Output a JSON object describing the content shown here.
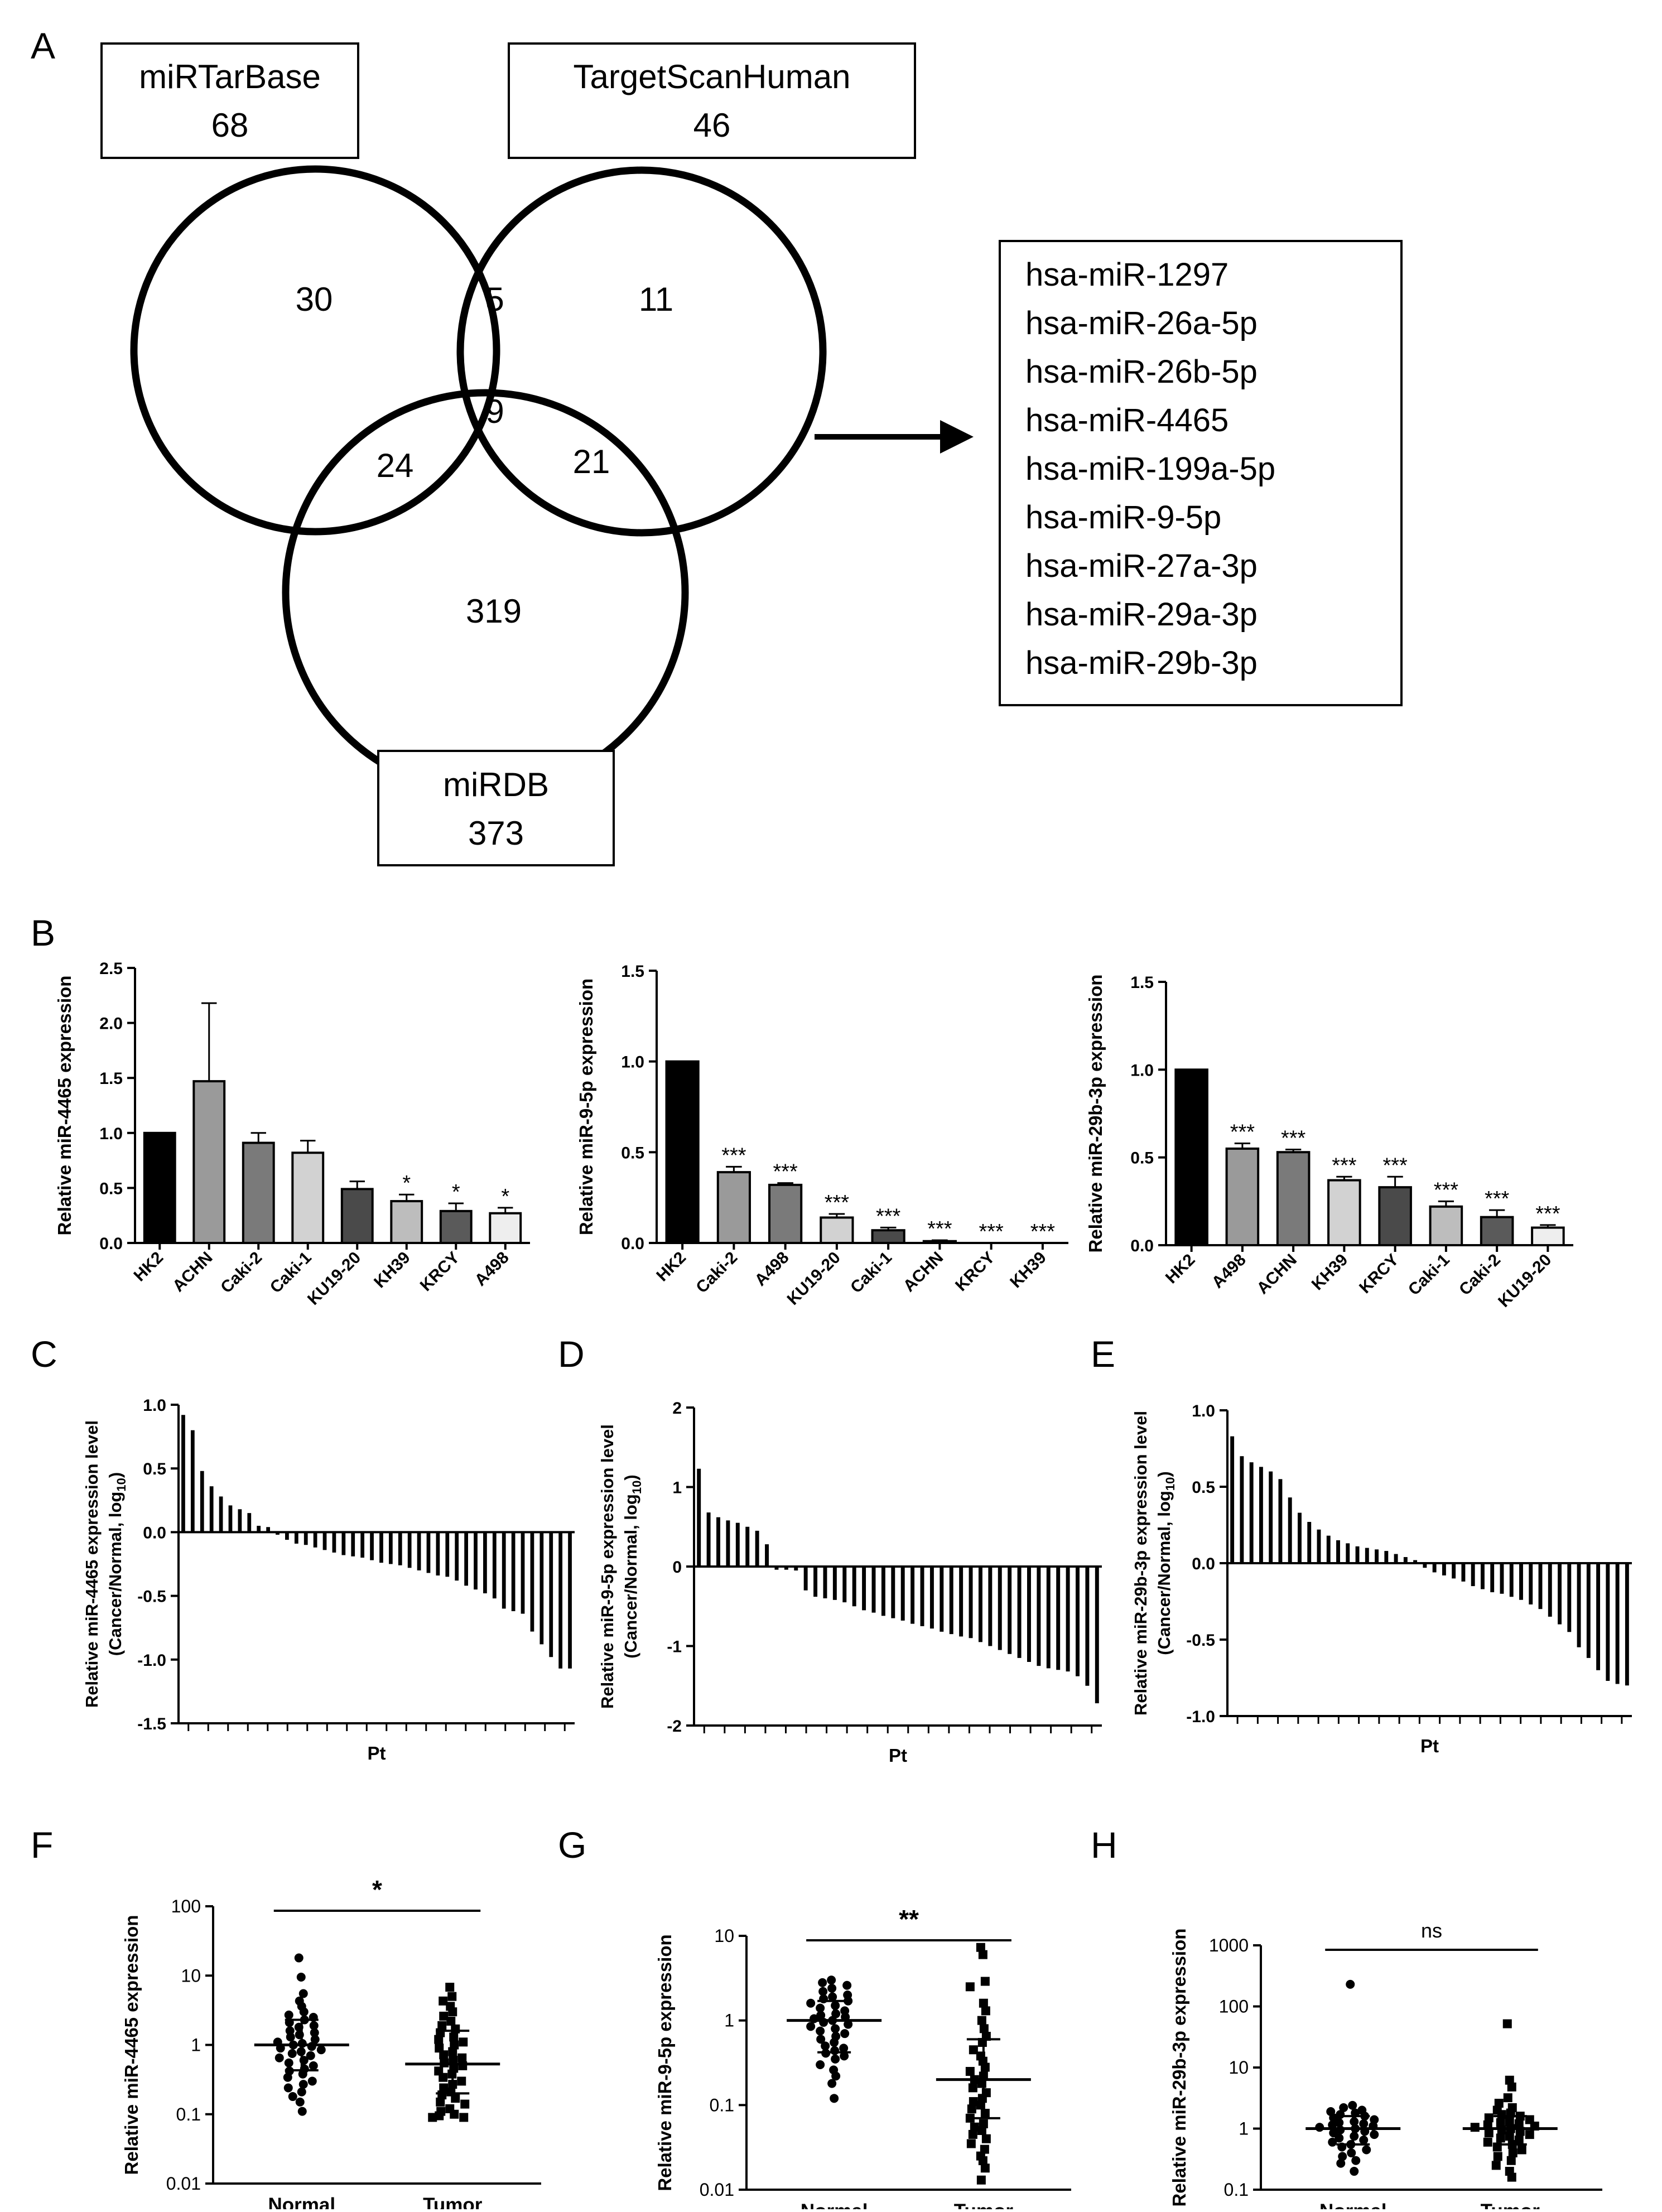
{
  "panel_letters": {
    "A": "A",
    "B": "B",
    "C": "C",
    "D": "D",
    "E": "E",
    "F": "F",
    "G": "G",
    "H": "H"
  },
  "venn": {
    "db1": {
      "name": "miRTarBase",
      "count": "68"
    },
    "db2": {
      "name": "TargetScanHuman",
      "count": "46"
    },
    "db3": {
      "name": "miRDB",
      "count": "373"
    },
    "regions": {
      "only1": "30",
      "only2": "11",
      "only3": "319",
      "r12": "5",
      "r13": "24",
      "r23": "21",
      "r123": "9"
    },
    "common_mirnas": [
      "hsa-miR-1297",
      "hsa-miR-26a-5p",
      "hsa-miR-26b-5p",
      "hsa-miR-4465",
      "hsa-miR-199a-5p",
      "hsa-miR-9-5p",
      "hsa-miR-27a-3p",
      "hsa-miR-29a-3p",
      "hsa-miR-29b-3p"
    ]
  },
  "chart_data": [
    {
      "id": "B1",
      "type": "bar",
      "ylabel": "Relative miR-4465 expression",
      "ylim": [
        0,
        2.5
      ],
      "yticks": [
        0,
        0.5,
        1.0,
        1.5,
        2.0,
        2.5
      ],
      "ytick_labels": [
        "0.0",
        "0.5",
        "1.0",
        "1.5",
        "2.0",
        "2.5"
      ],
      "categories": [
        "HK2",
        "ACHN",
        "Caki-2",
        "Caki-1",
        "KU19-20",
        "KH39",
        "KRCY",
        "A498"
      ],
      "values": [
        1.0,
        1.47,
        0.91,
        0.82,
        0.49,
        0.38,
        0.29,
        0.27
      ],
      "errors": [
        0,
        0.71,
        0.09,
        0.11,
        0.07,
        0.06,
        0.07,
        0.05
      ],
      "significance": [
        "",
        "",
        "",
        "",
        "",
        "*",
        "*",
        "*"
      ],
      "colors": [
        "#000000",
        "#9a9a9a",
        "#7a7a7a",
        "#d2d2d2",
        "#4a4a4a",
        "#bdbdbd",
        "#5a5a5a",
        "#eeeeee"
      ]
    },
    {
      "id": "B2",
      "type": "bar",
      "ylabel": "Relative miR-9-5p expression",
      "ylim": [
        0,
        1.5
      ],
      "yticks": [
        0,
        0.5,
        1.0,
        1.5
      ],
      "ytick_labels": [
        "0.0",
        "0.5",
        "1.0",
        "1.5"
      ],
      "categories": [
        "HK2",
        "Caki-2",
        "A498",
        "KU19-20",
        "Caki-1",
        "ACHN",
        "KRCY",
        "KH39"
      ],
      "values": [
        1.0,
        0.39,
        0.32,
        0.14,
        0.07,
        0.01,
        0.0,
        0.0
      ],
      "errors": [
        0,
        0.03,
        0.01,
        0.02,
        0.015,
        0.005,
        0,
        0
      ],
      "significance": [
        "",
        "***",
        "***",
        "***",
        "***",
        "***",
        "***",
        "***"
      ],
      "colors": [
        "#000000",
        "#9a9a9a",
        "#7a7a7a",
        "#d2d2d2",
        "#4a4a4a",
        "#bdbdbd",
        "#5a5a5a",
        "#eeeeee"
      ]
    },
    {
      "id": "B3",
      "type": "bar",
      "ylabel": "Relative miR-29b-3p expression",
      "ylim": [
        0,
        1.5
      ],
      "yticks": [
        0,
        0.5,
        1.0,
        1.5
      ],
      "ytick_labels": [
        "0.0",
        "0.5",
        "1.0",
        "1.5"
      ],
      "categories": [
        "HK2",
        "A498",
        "ACHN",
        "KH39",
        "KRCY",
        "Caki-1",
        "Caki-2",
        "KU19-20"
      ],
      "values": [
        1.0,
        0.55,
        0.53,
        0.37,
        0.33,
        0.22,
        0.16,
        0.1
      ],
      "errors": [
        0,
        0.03,
        0.015,
        0.02,
        0.06,
        0.03,
        0.04,
        0.015
      ],
      "significance": [
        "",
        "***",
        "***",
        "***",
        "***",
        "***",
        "***",
        "***"
      ],
      "colors": [
        "#000000",
        "#9a9a9a",
        "#7a7a7a",
        "#d2d2d2",
        "#4a4a4a",
        "#bdbdbd",
        "#5a5a5a",
        "#eeeeee"
      ]
    },
    {
      "id": "C",
      "type": "bar",
      "ylabel_line1": "Relative miR-4465 expression level",
      "ylabel_line2": "(Cancer/Normal, log",
      "ylabel_sub": "10",
      "ylabel_close": ")",
      "xlabel": "Pt",
      "ylim": [
        -1.5,
        1.0
      ],
      "yticks": [
        -1.5,
        -1.0,
        -0.5,
        0.0,
        0.5,
        1.0
      ],
      "ytick_labels": [
        "-1.5",
        "-1.0",
        "-0.5",
        "0.0",
        "0.5",
        "1.0"
      ],
      "values": [
        0.92,
        0.8,
        0.48,
        0.36,
        0.28,
        0.21,
        0.18,
        0.15,
        0.05,
        0.04,
        -0.02,
        -0.06,
        -0.09,
        -0.1,
        -0.12,
        -0.14,
        -0.16,
        -0.18,
        -0.19,
        -0.2,
        -0.22,
        -0.24,
        -0.25,
        -0.26,
        -0.28,
        -0.3,
        -0.32,
        -0.34,
        -0.35,
        -0.38,
        -0.42,
        -0.45,
        -0.48,
        -0.52,
        -0.6,
        -0.62,
        -0.64,
        -0.78,
        -0.88,
        -0.98,
        -1.07,
        -1.07
      ],
      "n_ticks": 20
    },
    {
      "id": "D",
      "type": "bar",
      "ylabel_line1": "Relative miR-9-5p expression level",
      "ylabel_line2": "(Cancer/Normal, log",
      "ylabel_sub": "10",
      "ylabel_close": ")",
      "xlabel": "Pt",
      "ylim": [
        -2,
        2
      ],
      "yticks": [
        -2,
        -1,
        0,
        1,
        2
      ],
      "ytick_labels": [
        "-2",
        "-1",
        "0",
        "1",
        "2"
      ],
      "values": [
        1.23,
        0.68,
        0.62,
        0.58,
        0.55,
        0.5,
        0.45,
        0.28,
        -0.04,
        -0.04,
        -0.05,
        -0.3,
        -0.38,
        -0.4,
        -0.42,
        -0.45,
        -0.5,
        -0.55,
        -0.58,
        -0.62,
        -0.65,
        -0.68,
        -0.72,
        -0.75,
        -0.78,
        -0.82,
        -0.85,
        -0.88,
        -0.9,
        -0.95,
        -1.0,
        -1.05,
        -1.1,
        -1.15,
        -1.2,
        -1.25,
        -1.28,
        -1.3,
        -1.32,
        -1.38,
        -1.5,
        -1.72
      ],
      "n_ticks": 20
    },
    {
      "id": "E",
      "type": "bar",
      "ylabel_line1": "Relative miR-29b-3p expression level",
      "ylabel_line2": "(Cancer/Normal, log",
      "ylabel_sub": "10",
      "ylabel_close": ")",
      "xlabel": "Pt",
      "ylim": [
        -1.0,
        1.0
      ],
      "yticks": [
        -1.0,
        -0.5,
        0.0,
        0.5,
        1.0
      ],
      "ytick_labels": [
        "-1.0",
        "-0.5",
        "0.0",
        "0.5",
        "1.0"
      ],
      "values": [
        0.83,
        0.7,
        0.66,
        0.63,
        0.6,
        0.55,
        0.43,
        0.33,
        0.27,
        0.22,
        0.18,
        0.15,
        0.13,
        0.11,
        0.1,
        0.09,
        0.08,
        0.06,
        0.04,
        0.02,
        -0.03,
        -0.06,
        -0.08,
        -0.1,
        -0.12,
        -0.15,
        -0.17,
        -0.19,
        -0.2,
        -0.22,
        -0.24,
        -0.27,
        -0.3,
        -0.35,
        -0.4,
        -0.45,
        -0.55,
        -0.62,
        -0.7,
        -0.77,
        -0.79,
        -0.8
      ],
      "n_ticks": 20
    },
    {
      "id": "F",
      "type": "scatter",
      "ylabel": "Relative miR-4465 expression",
      "yscale": "log",
      "ylim": [
        0.01,
        100
      ],
      "yticks": [
        0.01,
        0.1,
        1,
        10,
        100
      ],
      "ytick_labels": [
        "0.01",
        "0.1",
        "1",
        "10",
        "100"
      ],
      "categories": [
        "Normal",
        "Tumor"
      ],
      "significance": "*",
      "groups": [
        {
          "name": "Normal",
          "marker": "circle",
          "median": 1.0,
          "q1": 0.43,
          "q3": 2.3,
          "values": [
            18,
            9.5,
            5.5,
            4.3,
            3.6,
            3.0,
            2.7,
            2.5,
            2.3,
            2.1,
            1.9,
            1.8,
            1.6,
            1.5,
            1.4,
            1.3,
            1.2,
            1.1,
            1.05,
            1.0,
            0.95,
            0.9,
            0.85,
            0.8,
            0.75,
            0.7,
            0.65,
            0.6,
            0.55,
            0.5,
            0.45,
            0.42,
            0.38,
            0.34,
            0.3,
            0.27,
            0.24,
            0.21,
            0.18,
            0.15,
            0.11
          ]
        },
        {
          "name": "Tumor",
          "marker": "square",
          "median": 0.53,
          "q1": 0.2,
          "q3": 1.6,
          "values": [
            6.8,
            5.0,
            4.3,
            3.6,
            3.0,
            2.6,
            2.2,
            1.9,
            1.7,
            1.5,
            1.3,
            1.2,
            1.1,
            1.0,
            0.9,
            0.8,
            0.72,
            0.65,
            0.6,
            0.55,
            0.5,
            0.46,
            0.42,
            0.38,
            0.34,
            0.3,
            0.27,
            0.24,
            0.21,
            0.19,
            0.17,
            0.15,
            0.14,
            0.12,
            0.11,
            0.1,
            0.095,
            0.09,
            0.09
          ]
        }
      ]
    },
    {
      "id": "G",
      "type": "scatter",
      "ylabel": "Relative miR-9-5p expression",
      "yscale": "log",
      "ylim": [
        0.01,
        10
      ],
      "yticks": [
        0.01,
        0.1,
        1,
        10
      ],
      "ytick_labels": [
        "0.01",
        "0.1",
        "1",
        "10"
      ],
      "categories": [
        "Normal",
        "Tumor"
      ],
      "significance": "**",
      "groups": [
        {
          "name": "Normal",
          "marker": "circle",
          "median": 1.0,
          "q1": 0.42,
          "q3": 1.7,
          "values": [
            3.0,
            2.8,
            2.6,
            2.4,
            2.2,
            2.0,
            1.9,
            1.8,
            1.7,
            1.6,
            1.5,
            1.4,
            1.3,
            1.2,
            1.15,
            1.1,
            1.05,
            1.0,
            0.95,
            0.9,
            0.85,
            0.8,
            0.75,
            0.7,
            0.65,
            0.6,
            0.55,
            0.5,
            0.47,
            0.44,
            0.41,
            0.38,
            0.35,
            0.3,
            0.26,
            0.22,
            0.18,
            0.12
          ]
        },
        {
          "name": "Tumor",
          "marker": "square",
          "median": 0.2,
          "q1": 0.07,
          "q3": 0.6,
          "values": [
            7.3,
            6.0,
            2.9,
            2.5,
            1.6,
            1.3,
            1.0,
            0.8,
            0.65,
            0.55,
            0.45,
            0.38,
            0.33,
            0.28,
            0.25,
            0.22,
            0.2,
            0.18,
            0.16,
            0.14,
            0.12,
            0.11,
            0.1,
            0.09,
            0.08,
            0.07,
            0.06,
            0.055,
            0.05,
            0.045,
            0.04,
            0.035,
            0.03,
            0.025,
            0.022,
            0.018,
            0.013
          ]
        }
      ]
    },
    {
      "id": "H",
      "type": "scatter",
      "ylabel": "Relative miR-29b-3p expression",
      "yscale": "log",
      "ylim": [
        0.1,
        1000
      ],
      "yticks": [
        0.1,
        1,
        10,
        100,
        1000
      ],
      "ytick_labels": [
        "0.1",
        "1",
        "10",
        "100",
        "1000"
      ],
      "categories": [
        "Normal",
        "Tumor"
      ],
      "significance": "ns",
      "groups": [
        {
          "name": "Normal",
          "marker": "circle",
          "median": 1.0,
          "q1": 0.55,
          "q3": 1.6,
          "values": [
            230,
            2.4,
            2.2,
            2.0,
            1.9,
            1.8,
            1.7,
            1.6,
            1.5,
            1.4,
            1.3,
            1.25,
            1.2,
            1.15,
            1.1,
            1.05,
            1.0,
            0.95,
            0.9,
            0.85,
            0.8,
            0.75,
            0.7,
            0.65,
            0.6,
            0.55,
            0.5,
            0.45,
            0.4,
            0.35,
            0.3,
            0.27,
            0.2
          ]
        },
        {
          "name": "Tumor",
          "marker": "square",
          "median": 1.0,
          "q1": 0.55,
          "q3": 1.6,
          "values": [
            52,
            6.2,
            4.8,
            3.2,
            2.6,
            2.2,
            2.0,
            1.8,
            1.7,
            1.6,
            1.5,
            1.4,
            1.3,
            1.25,
            1.2,
            1.15,
            1.1,
            1.05,
            1.0,
            0.95,
            0.9,
            0.85,
            0.8,
            0.75,
            0.7,
            0.65,
            0.6,
            0.55,
            0.5,
            0.45,
            0.4,
            0.35,
            0.3,
            0.25,
            0.2,
            0.16
          ]
        }
      ]
    }
  ]
}
